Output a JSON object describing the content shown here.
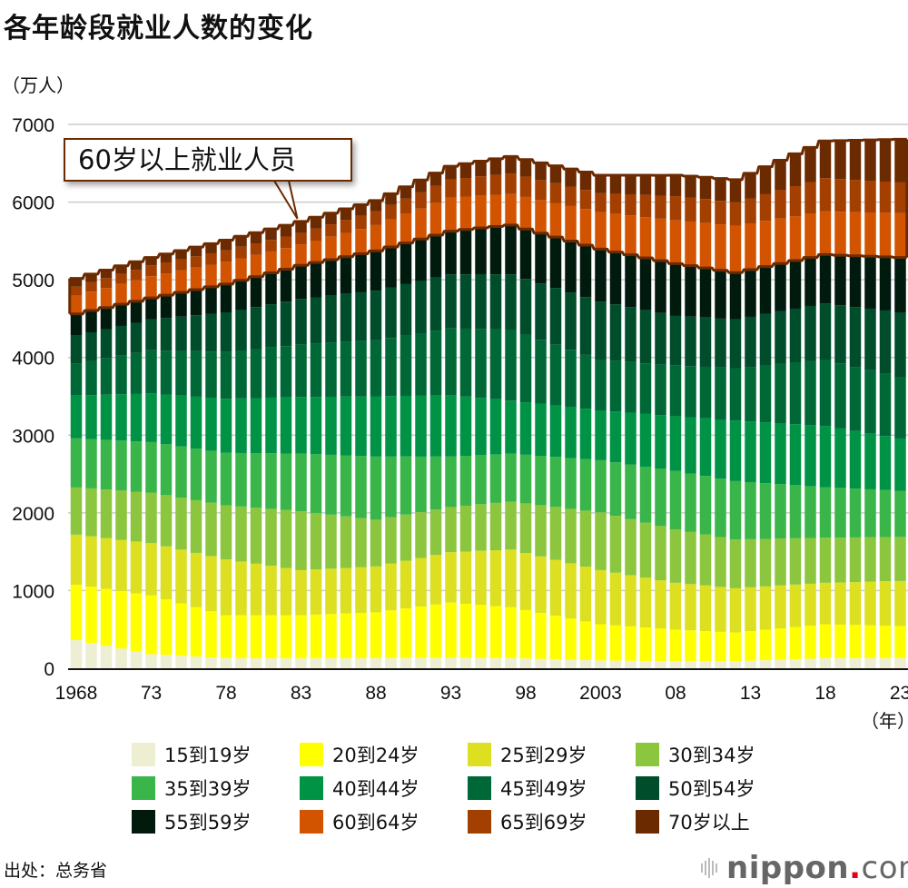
{
  "title": "各年龄段就业人数的变化",
  "unit_label": "（万人）",
  "callout": "60岁以上就业人员",
  "year_unit": "（年）",
  "source": "出处：总务省",
  "logo": {
    "name": "nippon",
    "dot": ".",
    "suffix": "com"
  },
  "chart_data": {
    "type": "bar",
    "stacked": true,
    "title": "各年龄段就业人数的变化",
    "ylabel": "（万人）",
    "xlabel": "（年）",
    "ylim": [
      0,
      7000
    ],
    "yticks": [
      0,
      1000,
      2000,
      3000,
      4000,
      5000,
      6000,
      7000
    ],
    "grid": true,
    "legend_position": "bottom",
    "xtick_labels": [
      {
        "index": 0,
        "label": "1968"
      },
      {
        "index": 5,
        "label": "73"
      },
      {
        "index": 10,
        "label": "78"
      },
      {
        "index": 15,
        "label": "83"
      },
      {
        "index": 20,
        "label": "88"
      },
      {
        "index": 25,
        "label": "93"
      },
      {
        "index": 30,
        "label": "98"
      },
      {
        "index": 35,
        "label": "2003"
      },
      {
        "index": 40,
        "label": "08"
      },
      {
        "index": 45,
        "label": "13"
      },
      {
        "index": 50,
        "label": "18"
      },
      {
        "index": 55,
        "label": "23"
      }
    ],
    "categories": [
      1968,
      1969,
      1970,
      1971,
      1972,
      1973,
      1974,
      1975,
      1976,
      1977,
      1978,
      1979,
      1980,
      1981,
      1982,
      1983,
      1984,
      1985,
      1986,
      1987,
      1988,
      1989,
      1990,
      1991,
      1992,
      1993,
      1994,
      1995,
      1996,
      1997,
      1998,
      1999,
      2000,
      2001,
      2002,
      2003,
      2004,
      2005,
      2006,
      2007,
      2008,
      2009,
      2010,
      2011,
      2012,
      2013,
      2014,
      2015,
      2016,
      2017,
      2018,
      2019,
      2020,
      2021,
      2022,
      2023
    ],
    "series": [
      {
        "name": "15到19岁",
        "color": "#eeeed2",
        "values": [
          362,
          326,
          290,
          253,
          217,
          181,
          171,
          161,
          150,
          140,
          130,
          129,
          128,
          128,
          127,
          126,
          127,
          128,
          128,
          129,
          130,
          131,
          132,
          133,
          134,
          135,
          134,
          133,
          131,
          130,
          125,
          120,
          115,
          110,
          105,
          100,
          98,
          96,
          94,
          92,
          90,
          90,
          90,
          90,
          90,
          97,
          103,
          110,
          117,
          123,
          130,
          130,
          130,
          130,
          130,
          130
        ]
      },
      {
        "name": "20到24岁",
        "color": "#ffff00",
        "values": [
          714,
          723,
          731,
          740,
          748,
          757,
          716,
          675,
          635,
          594,
          553,
          554,
          555,
          555,
          556,
          557,
          564,
          570,
          577,
          583,
          590,
          614,
          638,
          662,
          686,
          710,
          696,
          683,
          669,
          655,
          624,
          592,
          561,
          530,
          498,
          467,
          455,
          443,
          431,
          419,
          407,
          398,
          389,
          379,
          370,
          381,
          392,
          404,
          415,
          426,
          437,
          432,
          428,
          423,
          419,
          414
        ]
      },
      {
        "name": "25到29岁",
        "color": "#dce021",
        "values": [
          643,
          649,
          655,
          660,
          666,
          672,
          681,
          691,
          700,
          710,
          719,
          691,
          663,
          636,
          608,
          580,
          582,
          584,
          586,
          588,
          590,
          602,
          614,
          625,
          637,
          649,
          672,
          696,
          719,
          742,
          734,
          727,
          719,
          711,
          704,
          696,
          677,
          659,
          640,
          622,
          603,
          595,
          587,
          578,
          570,
          564,
          558,
          552,
          545,
          539,
          533,
          542,
          551,
          561,
          570,
          579
        ]
      },
      {
        "name": "30到34岁",
        "color": "#8cc63f",
        "values": [
          608,
          617,
          625,
          634,
          642,
          651,
          660,
          669,
          678,
          687,
          696,
          708,
          720,
          733,
          745,
          757,
          726,
          695,
          664,
          633,
          602,
          598,
          594,
          589,
          585,
          581,
          590,
          600,
          609,
          618,
          639,
          660,
          681,
          701,
          722,
          743,
          732,
          721,
          709,
          698,
          687,
          672,
          657,
          642,
          627,
          619,
          612,
          604,
          596,
          589,
          581,
          578,
          575,
          573,
          570,
          567
        ]
      },
      {
        "name": "35到39岁",
        "color": "#39b54a",
        "values": [
          632,
          636,
          639,
          643,
          646,
          650,
          655,
          660,
          664,
          669,
          674,
          688,
          701,
          715,
          728,
          742,
          756,
          770,
          785,
          799,
          813,
          780,
          748,
          715,
          683,
          650,
          642,
          634,
          625,
          617,
          626,
          635,
          645,
          654,
          663,
          672,
          688,
          704,
          720,
          736,
          752,
          752,
          752,
          752,
          752,
          735,
          718,
          701,
          684,
          667,
          650,
          639,
          628,
          616,
          605,
          594
        ]
      },
      {
        "name": "40到44岁",
        "color": "#009245",
        "values": [
          550,
          565,
          580,
          596,
          611,
          626,
          640,
          654,
          668,
          682,
          696,
          703,
          709,
          716,
          722,
          729,
          738,
          747,
          757,
          766,
          775,
          778,
          780,
          783,
          785,
          788,
          762,
          735,
          709,
          682,
          675,
          668,
          661,
          655,
          648,
          641,
          654,
          667,
          679,
          692,
          705,
          724,
          743,
          761,
          780,
          781,
          783,
          784,
          785,
          787,
          788,
          765,
          742,
          719,
          696,
          673
        ]
      },
      {
        "name": "45到49岁",
        "color": "#006837",
        "values": [
          409,
          439,
          468,
          498,
          527,
          557,
          566,
          575,
          585,
          594,
          603,
          617,
          631,
          645,
          659,
          673,
          682,
          692,
          701,
          711,
          720,
          748,
          776,
          805,
          833,
          861,
          875,
          888,
          902,
          915,
          871,
          826,
          782,
          738,
          693,
          649,
          649,
          650,
          650,
          651,
          651,
          657,
          662,
          668,
          673,
          702,
          732,
          761,
          791,
          820,
          849,
          837,
          825,
          813,
          801,
          789
        ]
      },
      {
        "name": "50到54岁",
        "color": "#004d2c",
        "values": [
          363,
          369,
          376,
          382,
          389,
          395,
          418,
          441,
          464,
          487,
          510,
          526,
          542,
          557,
          573,
          589,
          599,
          609,
          620,
          630,
          640,
          651,
          662,
          673,
          684,
          695,
          699,
          703,
          706,
          710,
          717,
          724,
          731,
          738,
          745,
          752,
          730,
          707,
          685,
          662,
          640,
          637,
          634,
          630,
          627,
          644,
          661,
          678,
          695,
          712,
          729,
          750,
          771,
          793,
          814,
          835
        ]
      },
      {
        "name": "55到59岁",
        "color": "#001a0e",
        "values": [
          280,
          280,
          279,
          279,
          278,
          278,
          295,
          312,
          329,
          346,
          363,
          377,
          391,
          404,
          418,
          432,
          448,
          464,
          479,
          495,
          511,
          520,
          529,
          539,
          548,
          557,
          577,
          596,
          616,
          635,
          642,
          648,
          655,
          661,
          668,
          674,
          674,
          674,
          674,
          673,
          673,
          656,
          638,
          621,
          603,
          607,
          611,
          615,
          619,
          623,
          627,
          643,
          659,
          674,
          690,
          706
        ]
      },
      {
        "name": "60到64岁",
        "color": "#d35400",
        "values": [
          234,
          243,
          252,
          261,
          270,
          279,
          281,
          282,
          284,
          285,
          287,
          283,
          280,
          276,
          273,
          269,
          282,
          295,
          307,
          320,
          333,
          353,
          373,
          392,
          412,
          432,
          424,
          416,
          408,
          400,
          413,
          426,
          439,
          451,
          464,
          477,
          493,
          509,
          525,
          541,
          557,
          569,
          581,
          592,
          604,
          596,
          588,
          580,
          572,
          564,
          556,
          559,
          562,
          564,
          567,
          570
        ]
      },
      {
        "name": "65到69岁",
        "color": "#a33f00",
        "values": [
          117,
          121,
          126,
          130,
          135,
          139,
          141,
          143,
          145,
          147,
          149,
          149,
          149,
          148,
          148,
          148,
          154,
          159,
          165,
          170,
          176,
          187,
          198,
          209,
          220,
          231,
          239,
          248,
          256,
          264,
          261,
          257,
          254,
          250,
          247,
          243,
          257,
          270,
          284,
          297,
          311,
          309,
          306,
          304,
          301,
          322,
          343,
          365,
          386,
          407,
          428,
          422,
          415,
          409,
          402,
          396
        ]
      },
      {
        "name": "70岁以上",
        "color": "#6b2a00",
        "values": [
          106,
          105,
          104,
          104,
          103,
          102,
          108,
          113,
          119,
          124,
          130,
          134,
          138,
          141,
          145,
          149,
          147,
          145,
          144,
          142,
          140,
          146,
          153,
          159,
          166,
          172,
          184,
          195,
          207,
          218,
          220,
          222,
          224,
          227,
          229,
          231,
          239,
          246,
          254,
          261,
          269,
          275,
          281,
          286,
          292,
          323,
          354,
          385,
          416,
          447,
          478,
          494,
          509,
          525,
          540,
          556
        ]
      }
    ],
    "highlight_outline_color": "#6b2a00",
    "gridline_color": "#cccccc"
  }
}
